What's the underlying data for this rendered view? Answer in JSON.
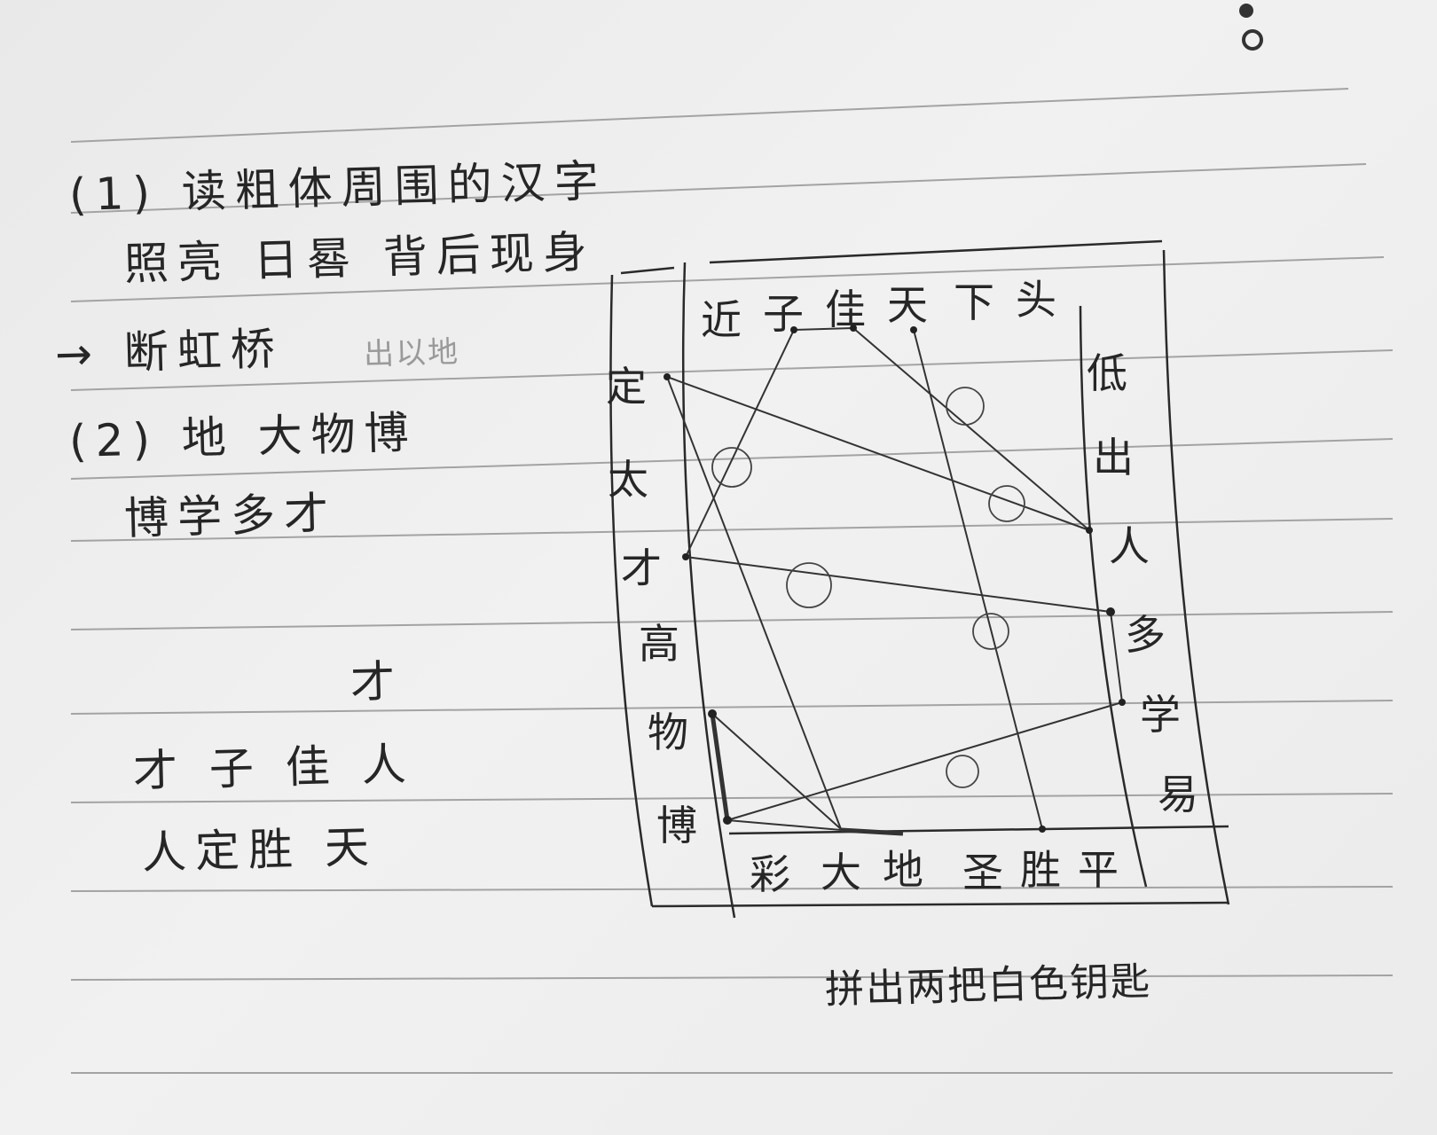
{
  "notes": {
    "line1": "(1) 读粗体周围的汉字",
    "line2": "照亮 日晷 背后现身",
    "line3": "→ 断虹桥",
    "line3_faint": "出以地",
    "line4": "(2) 地 大物博",
    "line5": "博学多才",
    "line6": "才",
    "line7": "才 子 佳  人",
    "line8": "人定胜  天",
    "footer": "拼出两把白色钥匙"
  },
  "grid": {
    "top": [
      "近",
      "子",
      "佳",
      "天",
      "下",
      "头"
    ],
    "left": [
      "定",
      "太",
      "才",
      "高",
      "物",
      "博"
    ],
    "right": [
      "低",
      "出",
      "人",
      "多",
      "学",
      "易"
    ],
    "bottom": [
      "彩",
      "大",
      "地",
      "圣",
      "胜",
      "平"
    ]
  },
  "colors": {
    "ink": "#262626",
    "paper": "#eeeeee",
    "rule": "#9c9c9c"
  }
}
